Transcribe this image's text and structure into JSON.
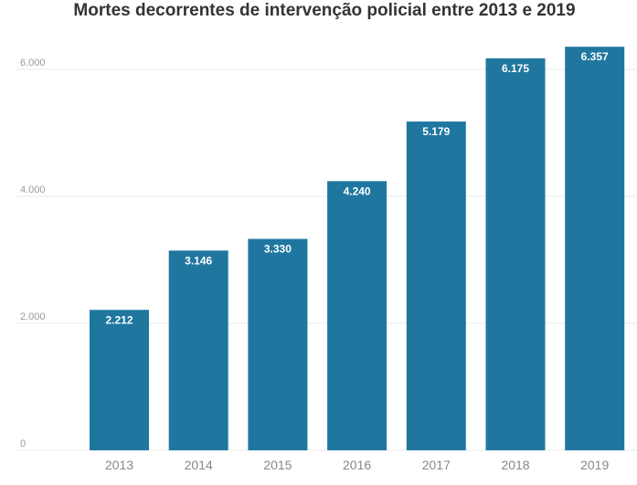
{
  "chart_data": {
    "type": "bar",
    "title": "Mortes decorrentes de intervenção policial entre 2013 e 2019",
    "categories": [
      "2013",
      "2014",
      "2015",
      "2016",
      "2017",
      "2018",
      "2019"
    ],
    "values": [
      2212,
      3146,
      3330,
      4240,
      5179,
      6175,
      6357
    ],
    "value_labels": [
      "2.212",
      "3.146",
      "3.330",
      "4.240",
      "5.179",
      "6.175",
      "6.357"
    ],
    "yticks": [
      0,
      2000,
      4000,
      6000
    ],
    "ytick_labels": [
      "0",
      "2.000",
      "4.000",
      "6.000"
    ],
    "ylim": [
      0,
      6357
    ],
    "xlabel": "",
    "ylabel": "",
    "grid": true,
    "bar_color": "#1f77a0"
  }
}
